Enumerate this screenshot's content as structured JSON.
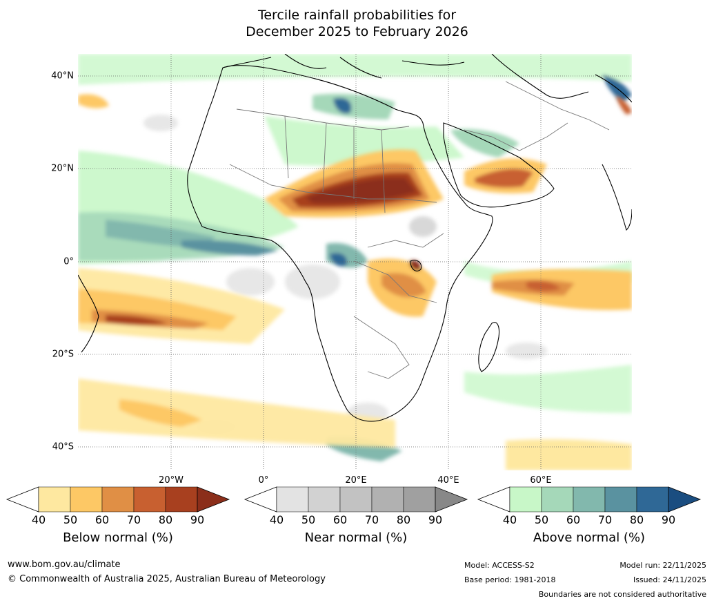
{
  "title": {
    "line1": "Tercile rainfall probabilities for",
    "line2": "December 2025 to February 2026"
  },
  "map": {
    "region": "Africa and surrounding oceans",
    "lat_labels": [
      "40°N",
      "20°N",
      "0°",
      "20°S",
      "40°S"
    ],
    "lon_labels": [
      "20°W",
      "0°",
      "20°E",
      "40°E",
      "60°E"
    ]
  },
  "colorbars": [
    {
      "title": "Below normal (%)",
      "ticks": [
        "40",
        "50",
        "60",
        "70",
        "80",
        "90"
      ],
      "colors": [
        "#ffffff",
        "#fee8a0",
        "#fdc865",
        "#e08f45",
        "#c86030",
        "#a8401f",
        "#8b2e1a"
      ]
    },
    {
      "title": "Near normal (%)",
      "ticks": [
        "40",
        "50",
        "60",
        "70",
        "80",
        "90"
      ],
      "colors": [
        "#ffffff",
        "#e3e3e3",
        "#d2d2d2",
        "#c2c2c2",
        "#b1b1b1",
        "#a0a0a0",
        "#888888"
      ]
    },
    {
      "title": "Above normal (%)",
      "ticks": [
        "40",
        "50",
        "60",
        "70",
        "80",
        "90"
      ],
      "colors": [
        "#ffffff",
        "#c8f7c8",
        "#a5d8b9",
        "#82b8ad",
        "#5a92a0",
        "#2f6896",
        "#1a4d80"
      ]
    }
  ],
  "footer": {
    "website": "www.bom.gov.au/climate",
    "copyright": "© Commonwealth of Australia 2025, Australian Bureau of Meteorology",
    "model": "Model: ACCESS-S2",
    "base_period": "Base period: 1981-2018",
    "model_run": "Model run: 22/11/2025",
    "issued": "Issued: 24/11/2025",
    "disclaimer": "Boundaries are not considered authoritative"
  }
}
